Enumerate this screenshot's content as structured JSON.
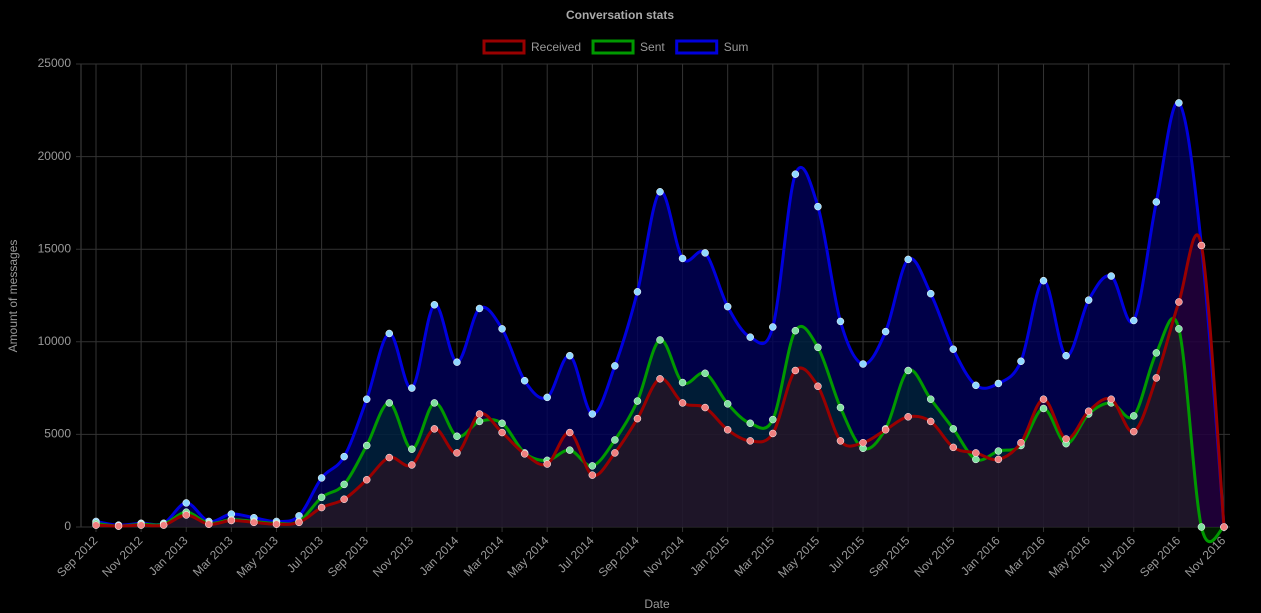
{
  "chart_data": {
    "type": "line",
    "title": "Conversation stats",
    "x_label": "Date",
    "y_label": "Amount of messages",
    "categories": [
      "Sep 2012",
      null,
      "Nov 2012",
      null,
      "Jan 2013",
      null,
      "Mar 2013",
      null,
      "May 2013",
      null,
      "Jul 2013",
      null,
      "Sep 2013",
      null,
      "Nov 2013",
      null,
      "Jan 2014",
      null,
      "Mar 2014",
      null,
      "May 2014",
      null,
      "Jul 2014",
      null,
      "Sep 2014",
      null,
      "Nov 2014",
      null,
      "Jan 2015",
      null,
      "Mar 2015",
      null,
      "May 2015",
      null,
      "Jul 2015",
      null,
      "Sep 2015",
      null,
      "Nov 2015",
      null,
      "Jan 2016",
      null,
      "Mar 2016",
      null,
      "May 2016",
      null,
      "Jul 2016",
      null,
      "Sep 2016",
      null,
      "Nov 2016"
    ],
    "series": [
      {
        "name": "Received",
        "color": "#990000",
        "fill": "rgba(120,0,0,0.25)",
        "point": "#f08080",
        "values": [
          100,
          50,
          100,
          100,
          650,
          150,
          350,
          250,
          150,
          250,
          1050,
          1500,
          2550,
          3750,
          3350,
          5300,
          4000,
          6100,
          5100,
          3950,
          3400,
          5100,
          2800,
          4000,
          5850,
          8000,
          6700,
          6450,
          5250,
          4650,
          5050,
          8450,
          7600,
          4650,
          4550,
          5250,
          5950,
          5700,
          4300,
          4000,
          3650,
          4550,
          6900,
          4750,
          6250,
          6900,
          5150,
          8050,
          12150,
          15200,
          0
        ]
      },
      {
        "name": "Sent",
        "color": "#009900",
        "fill": "rgba(0,110,0,0.25)",
        "point": "#80e0a0",
        "values": [
          200,
          50,
          150,
          150,
          800,
          200,
          400,
          300,
          200,
          300,
          1600,
          2300,
          4400,
          6700,
          4200,
          6700,
          4900,
          5700,
          5600,
          4000,
          3600,
          4150,
          3300,
          4700,
          6800,
          10100,
          7800,
          8300,
          6650,
          5600,
          5800,
          10600,
          9700,
          6450,
          4250,
          5300,
          8450,
          6900,
          5300,
          3650,
          4100,
          4400,
          6400,
          4500,
          6100,
          6700,
          6000,
          9400,
          10700,
          0,
          0
        ]
      },
      {
        "name": "Sum",
        "color": "#0000dd",
        "fill": "rgba(0,0,90,0.8)",
        "point": "#90d8ff",
        "values": [
          300,
          100,
          200,
          200,
          1300,
          300,
          700,
          500,
          300,
          600,
          2650,
          3800,
          6900,
          10450,
          7500,
          12000,
          8900,
          11800,
          10700,
          7900,
          7000,
          9250,
          6100,
          8700,
          12700,
          18100,
          14500,
          14800,
          11900,
          10250,
          10800,
          19050,
          17300,
          11100,
          8800,
          10550,
          14450,
          12600,
          9600,
          7650,
          7750,
          8950,
          13300,
          9250,
          12250,
          13550,
          11150,
          17550,
          22900,
          15200,
          0
        ]
      }
    ],
    "ylim": [
      0,
      25000
    ],
    "yticks": [
      0,
      5000,
      10000,
      15000,
      20000,
      25000
    ],
    "grid": true,
    "legend": "top"
  }
}
